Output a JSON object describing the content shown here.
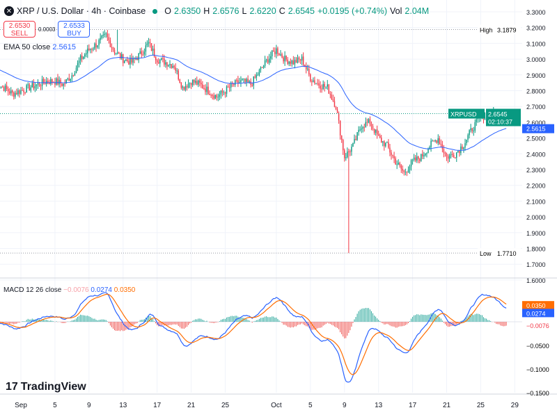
{
  "header": {
    "symbol_title": "XRP / U.S. Dollar · 4h · Coinbase",
    "open_label": "O",
    "open": "2.6350",
    "high_label": "H",
    "high": "2.6576",
    "low_label": "L",
    "low": "2.6220",
    "close_label": "C",
    "close": "2.6545",
    "change": "+0.0195 (+0.74%)",
    "vol_label": "Vol",
    "vol": "2.04M"
  },
  "trade": {
    "sell_price": "2.6530",
    "sell_label": "SELL",
    "spread": "0.0003",
    "buy_price": "2.6533",
    "buy_label": "BUY"
  },
  "ema": {
    "label": "EMA 50 close",
    "value": "2.5615"
  },
  "macd": {
    "label": "MACD 12 26 close",
    "hist": "−0.0076",
    "macd": "0.0274",
    "signal": "0.0350"
  },
  "branding": "TradingView",
  "colors": {
    "up": "#089981",
    "down": "#f23645",
    "ema": "#2962ff",
    "macd": "#2962ff",
    "signal": "#ff6d00"
  },
  "chart_data": [
    {
      "type": "candlestick",
      "timeframe": "4h",
      "symbol": "XRPUSD",
      "ylim": [
        1.6,
        3.3
      ],
      "yticks": [
        "3.3000",
        "3.2000",
        "3.1000",
        "3.0000",
        "2.9000",
        "2.8000",
        "2.7000",
        "2.6000",
        "2.5000",
        "2.4000",
        "2.3000",
        "2.2000",
        "2.1000",
        "2.0000",
        "1.9000",
        "1.8000",
        "1.7000",
        "1.6000"
      ],
      "xticks": [
        "Sep",
        "5",
        "9",
        "13",
        "17",
        "21",
        "25",
        "Oct",
        "5",
        "9",
        "13",
        "17",
        "21",
        "25",
        "29"
      ],
      "daily_closes": {
        "start": "Aug 29",
        "values": [
          2.84,
          2.82,
          2.78,
          2.8,
          2.82,
          2.84,
          2.86,
          2.86,
          2.84,
          2.9,
          3.0,
          3.06,
          3.1,
          3.15,
          3.05,
          3.0,
          2.98,
          3.03,
          3.1,
          3.0,
          2.98,
          2.96,
          2.82,
          2.86,
          2.84,
          2.8,
          2.76,
          2.8,
          2.84,
          2.86,
          2.84,
          2.92,
          3.0,
          3.06,
          3.0,
          2.98,
          3.0,
          2.88,
          2.84,
          2.82,
          2.7,
          2.38,
          2.45,
          2.58,
          2.6,
          2.5,
          2.45,
          2.35,
          2.28,
          2.35,
          2.38,
          2.45,
          2.5,
          2.38,
          2.4,
          2.46,
          2.56,
          2.63,
          2.66,
          2.65,
          2.6545
        ]
      },
      "range_high": {
        "label": "High",
        "value": "3.1879"
      },
      "range_low": {
        "label": "Low",
        "value": "1.7710"
      },
      "last_price": {
        "label": "XRPUSD",
        "value": "2.6545",
        "countdown": "02:10:37"
      },
      "ema_last": "2.5615"
    },
    {
      "type": "macd",
      "ylim": [
        -0.15,
        0.07
      ],
      "yticks": [
        "0.0350",
        "0.0274",
        "−0.0076",
        "−0.0500",
        "−0.1000",
        "−0.1500"
      ]
    }
  ]
}
